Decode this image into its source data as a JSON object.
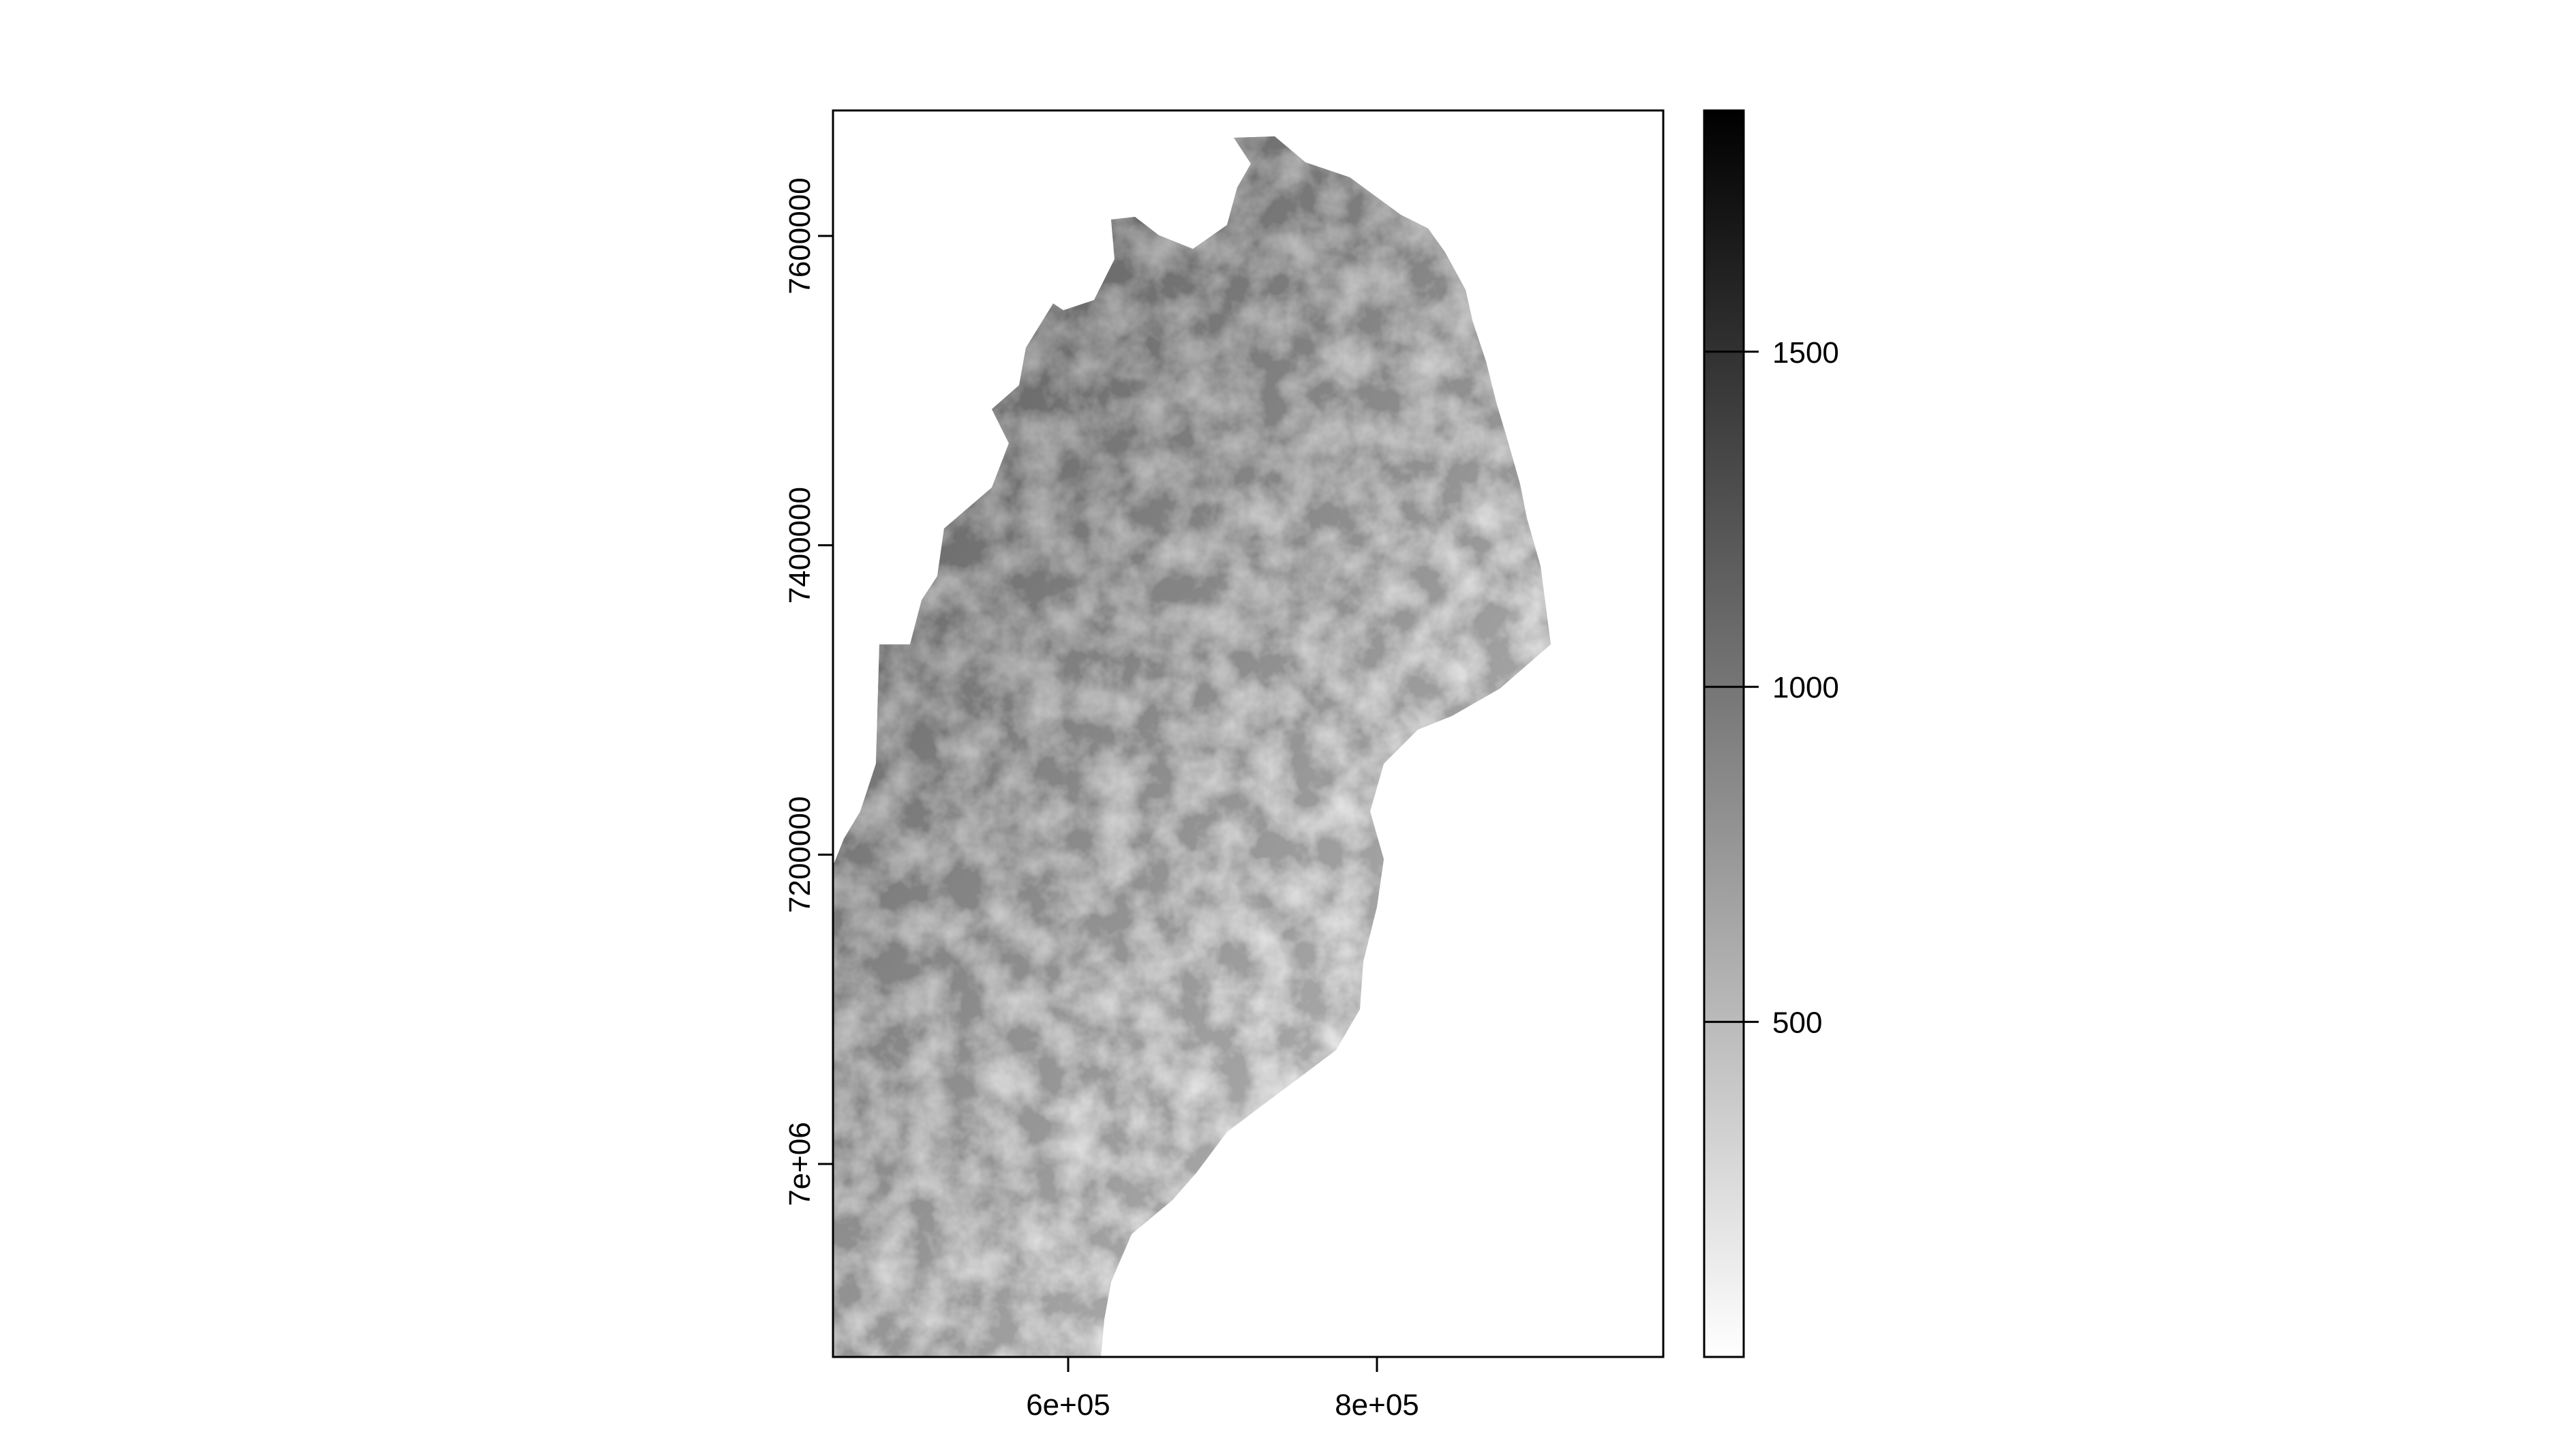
{
  "map": {
    "type": "raster",
    "palette": [
      "#ffffff",
      "#000000"
    ],
    "x_axis": {
      "ticks": [
        {
          "value": 600000,
          "label": "6e+05"
        },
        {
          "value": 800000,
          "label": "8e+05"
        }
      ]
    },
    "y_axis": {
      "ticks": [
        {
          "value": 7000000,
          "label": "7e+06"
        },
        {
          "value": 7200000,
          "label": "7200000"
        },
        {
          "value": 7400000,
          "label": "7400000"
        },
        {
          "value": 7600000,
          "label": "7600000"
        }
      ]
    },
    "legend": {
      "min": 0,
      "max": 1860,
      "ticks": [
        {
          "value": 500,
          "label": "500"
        },
        {
          "value": 1000,
          "label": "1000"
        },
        {
          "value": 1500,
          "label": "1500"
        }
      ]
    }
  }
}
